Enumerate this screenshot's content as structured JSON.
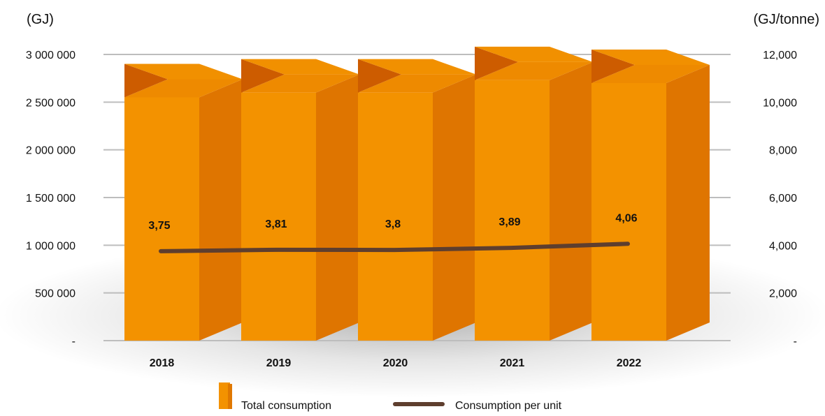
{
  "chart_data": {
    "type": "bar",
    "categories": [
      "2018",
      "2019",
      "2020",
      "2021",
      "2022"
    ],
    "left_axis": {
      "unit_label": "(GJ)",
      "ylim": [
        0,
        3000000
      ],
      "ticks": [
        0,
        500000,
        1000000,
        1500000,
        2000000,
        2500000,
        3000000
      ],
      "tick_labels": [
        "-",
        "500 000",
        "1 000 000",
        "1 500 000",
        "2 000 000",
        "2 500 000",
        "3 000 000"
      ]
    },
    "right_axis": {
      "unit_label": "(GJ/tonne)",
      "ylim": [
        0,
        12000
      ],
      "ticks": [
        0,
        2000,
        4000,
        6000,
        8000,
        10000,
        12000
      ],
      "tick_labels": [
        "-",
        "2,000",
        "4,000",
        "6,000",
        "8,000",
        "10,000",
        "12,000"
      ]
    },
    "series": [
      {
        "name": "Total consumption",
        "type": "bar",
        "axis": "left",
        "values": [
          2550000,
          2600000,
          2600000,
          2730000,
          2700000
        ],
        "color": "#F39200"
      },
      {
        "name": "Consumption per unit",
        "type": "line",
        "axis": "right",
        "values": [
          3.75,
          3.81,
          3.8,
          3.89,
          4.06
        ],
        "data_labels": [
          "3,75",
          "3,81",
          "3,8",
          "3,89",
          "4,06"
        ],
        "color": "#5E3E2E"
      }
    ],
    "grid": true,
    "legend_position": "bottom"
  }
}
